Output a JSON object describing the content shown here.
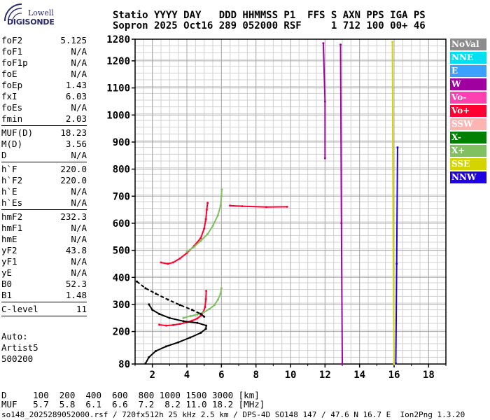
{
  "logo": {
    "line1": "Lowell",
    "line2": "DIGISONDE"
  },
  "header": {
    "line1": "Statio YYYY DAY   DDD HHMMSS P1  FFS S AXN PPS IGA PS",
    "line2": "Sopron 2025 Oct16 289 052000 RSF     1 712 100 00+ 46"
  },
  "params": {
    "group1": [
      {
        "name": "foF2",
        "value": "5.125"
      },
      {
        "name": "foF1",
        "value": "N/A"
      },
      {
        "name": "foF1p",
        "value": "N/A"
      },
      {
        "name": "foE",
        "value": "N/A"
      },
      {
        "name": "foEp",
        "value": "1.43"
      },
      {
        "name": "fxI",
        "value": "6.03"
      },
      {
        "name": "foEs",
        "value": "N/A"
      },
      {
        "name": "fmin",
        "value": "2.03"
      }
    ],
    "group2": [
      {
        "name": "MUF(D)",
        "value": "18.23"
      },
      {
        "name": "M(D)",
        "value": "3.56"
      },
      {
        "name": "D",
        "value": "N/A"
      }
    ],
    "group3": [
      {
        "name": "h`F",
        "value": "220.0"
      },
      {
        "name": "h`F2",
        "value": "220.0"
      },
      {
        "name": "h`E",
        "value": "N/A"
      },
      {
        "name": "h`Es",
        "value": "N/A"
      }
    ],
    "group4": [
      {
        "name": "hmF2",
        "value": "232.3"
      },
      {
        "name": "hmF1",
        "value": "N/A"
      },
      {
        "name": "hmE",
        "value": "N/A"
      },
      {
        "name": "yF2",
        "value": "43.8"
      },
      {
        "name": "yF1",
        "value": "N/A"
      },
      {
        "name": "yE",
        "value": "N/A"
      },
      {
        "name": "B0",
        "value": "52.3"
      },
      {
        "name": "B1",
        "value": "1.48"
      }
    ],
    "group5": [
      {
        "name": "C-level",
        "value": "11"
      }
    ]
  },
  "auto": {
    "line1": "Auto:",
    "line2": "Artist5",
    "line3": "500200"
  },
  "legend": [
    {
      "label": "NoVal",
      "color": "#8c8c8c"
    },
    {
      "label": "NNE",
      "color": "#00e0f0"
    },
    {
      "label": "E",
      "color": "#3ca0ff"
    },
    {
      "label": "W",
      "color": "#a000a0"
    },
    {
      "label": "Vo-",
      "color": "#ff40b0"
    },
    {
      "label": "Vo+",
      "color": "#ff0030"
    },
    {
      "label": "SSW",
      "color": "#ffb4b4"
    },
    {
      "label": "X-",
      "color": "#008000"
    },
    {
      "label": "X+",
      "color": "#80c060"
    },
    {
      "label": "SSE",
      "color": "#d4d400"
    },
    {
      "label": "NNW",
      "color": "#2000e0"
    }
  ],
  "footer": {
    "d_line": "D     100  200  400  600  800 1000 1500 3000 [km]",
    "muf_line": "MUF   5.7  5.8  6.1  6.6  7.2  8.2 11.0 18.2 [MHz]",
    "info_line": "so148_2025289052000.rsf / 720fx512h 25 kHz 2.5 km / DPS-4D SO148 147 / 47.6 N 16.7 E  Ion2Png 1.3.20"
  },
  "chart_data": {
    "type": "scatter",
    "xlim": [
      1,
      19
    ],
    "ylim": [
      80,
      1280
    ],
    "x_ticks": [
      2,
      4,
      6,
      8,
      10,
      12,
      14,
      16,
      18
    ],
    "y_ticks": [
      80,
      200,
      300,
      400,
      500,
      600,
      700,
      800,
      900,
      1000,
      1100,
      1200,
      1280
    ],
    "grid": true,
    "series": [
      {
        "color": "#ff0030",
        "points": [
          [
            2.4,
            225
          ],
          [
            2.8,
            222
          ],
          [
            3.2,
            224
          ],
          [
            3.6,
            228
          ],
          [
            4.0,
            234
          ],
          [
            4.3,
            240
          ],
          [
            4.6,
            248
          ],
          [
            4.8,
            258
          ],
          [
            4.95,
            272
          ],
          [
            5.05,
            290
          ],
          [
            5.1,
            320
          ],
          [
            5.12,
            350
          ]
        ]
      },
      {
        "color": "#ff0030",
        "points": [
          [
            2.5,
            455
          ],
          [
            2.9,
            450
          ],
          [
            3.2,
            455
          ],
          [
            3.6,
            470
          ],
          [
            4.0,
            490
          ],
          [
            4.4,
            515
          ],
          [
            4.8,
            545
          ],
          [
            5.0,
            580
          ],
          [
            5.1,
            615
          ],
          [
            5.15,
            650
          ],
          [
            5.2,
            675
          ]
        ]
      },
      {
        "color": "#80c060",
        "points": [
          [
            3.8,
            250
          ],
          [
            4.2,
            257
          ],
          [
            4.6,
            263
          ],
          [
            5.0,
            272
          ],
          [
            5.3,
            283
          ],
          [
            5.6,
            298
          ],
          [
            5.8,
            318
          ],
          [
            5.95,
            340
          ],
          [
            6.0,
            360
          ]
        ]
      },
      {
        "color": "#80c060",
        "points": [
          [
            4.0,
            495
          ],
          [
            4.4,
            512
          ],
          [
            4.8,
            535
          ],
          [
            5.2,
            560
          ],
          [
            5.5,
            590
          ],
          [
            5.8,
            630
          ],
          [
            5.95,
            665
          ],
          [
            6.0,
            700
          ],
          [
            6.02,
            725
          ]
        ]
      },
      {
        "color": "#000000",
        "points": [
          [
            1.6,
            82
          ],
          [
            1.8,
            105
          ],
          [
            2.2,
            128
          ],
          [
            2.8,
            145
          ],
          [
            3.5,
            160
          ],
          [
            4.2,
            178
          ],
          [
            4.8,
            195
          ],
          [
            5.1,
            210
          ],
          [
            5.12,
            222
          ],
          [
            4.6,
            232
          ],
          [
            3.8,
            238
          ],
          [
            3.0,
            250
          ],
          [
            2.4,
            265
          ],
          [
            2.0,
            280
          ],
          [
            1.8,
            300
          ]
        ]
      },
      {
        "color": "#000000",
        "dashed": true,
        "points": [
          [
            1.1,
            385
          ],
          [
            1.6,
            360
          ],
          [
            2.2,
            340
          ],
          [
            2.9,
            318
          ],
          [
            3.6,
            298
          ],
          [
            4.3,
            280
          ],
          [
            4.8,
            265
          ],
          [
            5.0,
            255
          ]
        ]
      },
      {
        "color": "#a000a0",
        "points": [
          [
            11.9,
            1265
          ],
          [
            12.0,
            1050
          ],
          [
            12.0,
            840
          ]
        ]
      },
      {
        "color": "#a000a0",
        "points": [
          [
            12.9,
            1260
          ],
          [
            12.95,
            600
          ],
          [
            13.0,
            80
          ]
        ]
      },
      {
        "color": "#d4d400",
        "points": [
          [
            15.9,
            1270
          ],
          [
            15.95,
            500
          ],
          [
            16.0,
            80
          ]
        ]
      },
      {
        "color": "#2000e0",
        "points": [
          [
            16.2,
            880
          ],
          [
            16.15,
            450
          ],
          [
            16.1,
            82
          ]
        ]
      },
      {
        "color": "#ff0030",
        "points": [
          [
            6.5,
            665
          ],
          [
            7.2,
            663
          ],
          [
            8.6,
            660
          ],
          [
            9.8,
            661
          ]
        ]
      }
    ]
  }
}
